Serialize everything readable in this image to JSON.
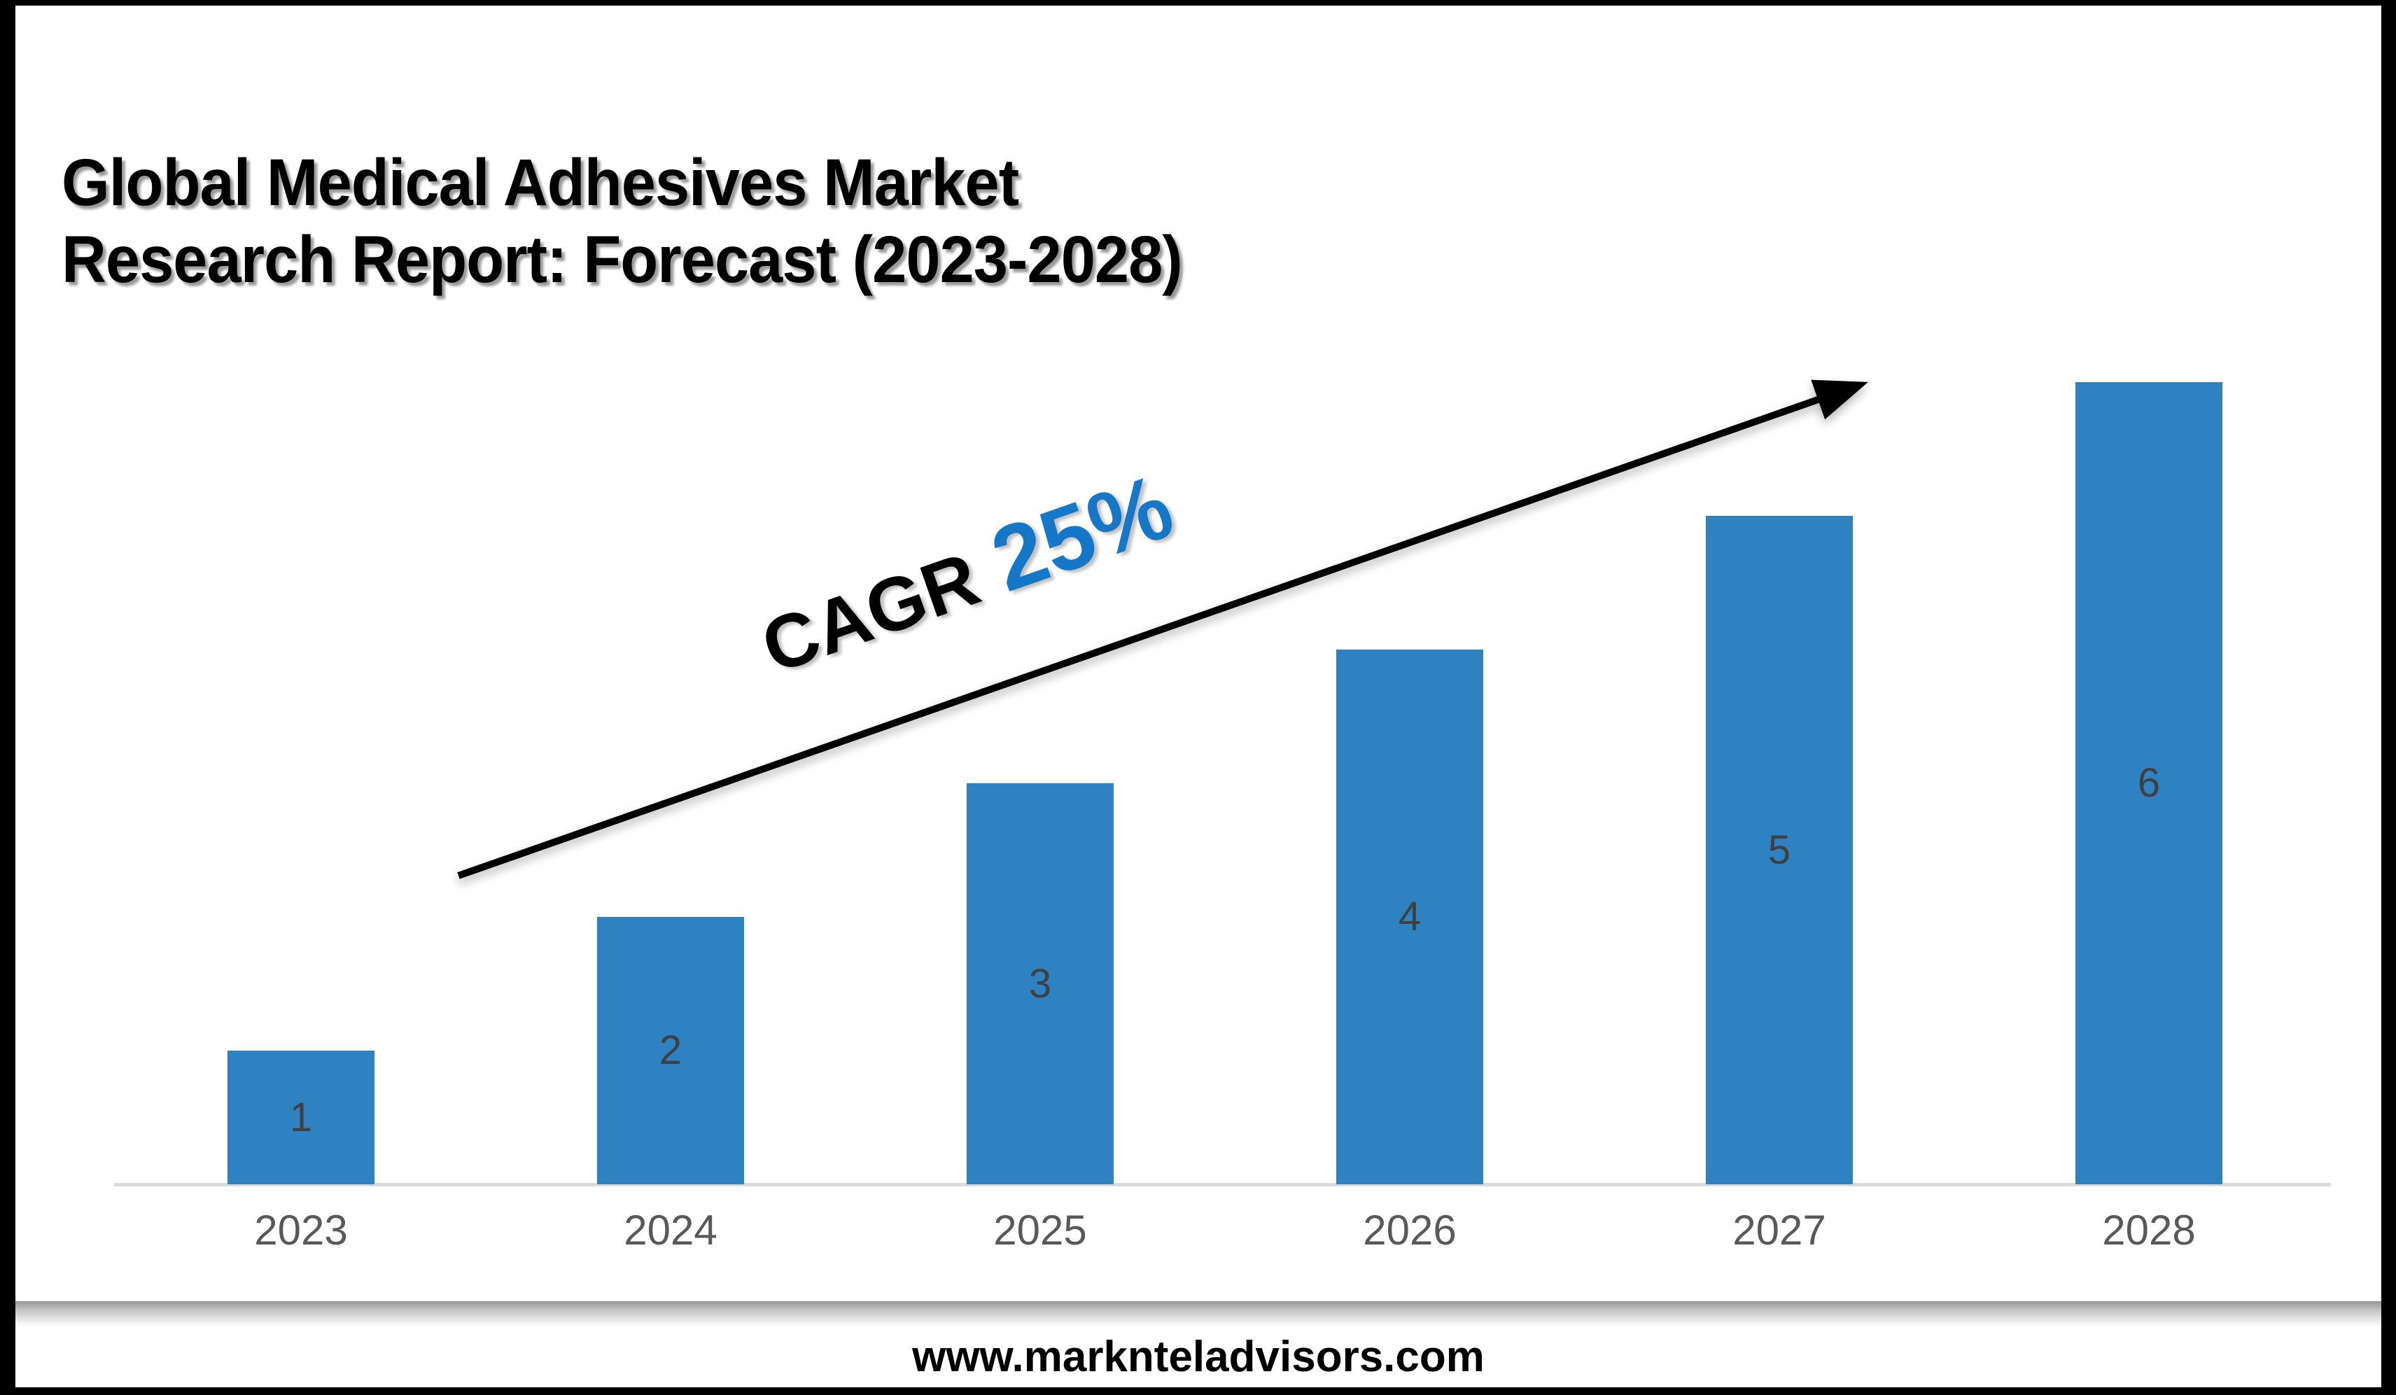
{
  "title": {
    "line1": "Global Medical Adhesives Market",
    "line2": "Research Report: Forecast (2023-2028)"
  },
  "cagr": {
    "label": "CAGR",
    "value": "25%",
    "accent_color": "#1477C8"
  },
  "footer": {
    "url": "www.marknteladvisors.com"
  },
  "chart_data": {
    "type": "bar",
    "title": "Global Medical Adhesives Market Research Report: Forecast (2023-2028)",
    "categories": [
      "2023",
      "2024",
      "2025",
      "2026",
      "2027",
      "2028"
    ],
    "values": [
      1,
      2,
      3,
      4,
      5,
      6
    ],
    "annotation": "CAGR 25%",
    "ylim": [
      0,
      6
    ],
    "grid": false,
    "legend": "none",
    "bar_color": "#2E82C2",
    "value_label_color": "#404040",
    "value_label_position": "center",
    "category_label_color": "#595959",
    "axis_line_color": "#DBDBDB"
  }
}
